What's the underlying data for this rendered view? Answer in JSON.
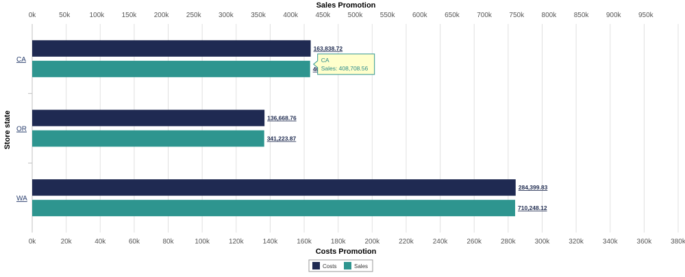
{
  "chart_data": {
    "type": "bar",
    "orientation": "horizontal",
    "categories": [
      "CA",
      "OR",
      "WA"
    ],
    "y_axis_title": "Store state",
    "top_axis": {
      "title": "Sales Promotion",
      "range": [
        0,
        950000
      ],
      "ticks": [
        "0k",
        "50k",
        "100k",
        "150k",
        "200k",
        "250k",
        "300k",
        "350k",
        "400k",
        "450k",
        "500k",
        "550k",
        "600k",
        "650k",
        "700k",
        "750k",
        "800k",
        "850k",
        "900k",
        "950k"
      ]
    },
    "bottom_axis": {
      "title": "Costs Promotion",
      "range": [
        0,
        380000
      ],
      "ticks": [
        "0k",
        "20k",
        "40k",
        "60k",
        "80k",
        "100k",
        "120k",
        "140k",
        "160k",
        "180k",
        "200k",
        "220k",
        "240k",
        "260k",
        "280k",
        "300k",
        "320k",
        "340k",
        "360k",
        "380k"
      ]
    },
    "series": [
      {
        "name": "Costs",
        "axis": "bottom",
        "color": "#1f2a52",
        "values": [
          163838.72,
          136668.76,
          284399.83
        ],
        "labels": [
          "163,838.72",
          "136,668.76",
          "284,399.83"
        ]
      },
      {
        "name": "Sales",
        "axis": "top",
        "color": "#2e958f",
        "values": [
          408708.56,
          341223.87,
          710248.12
        ],
        "labels": [
          "408,708.56",
          "341,223.87",
          "710,248.12"
        ]
      }
    ],
    "grid": true,
    "legend_position": "bottom-center",
    "tooltip": {
      "line1": "CA",
      "line2": "Sales: 408,708.56",
      "background": "#ffffcc",
      "border": "#2e958f",
      "text_color": "#2a8a8a"
    }
  }
}
